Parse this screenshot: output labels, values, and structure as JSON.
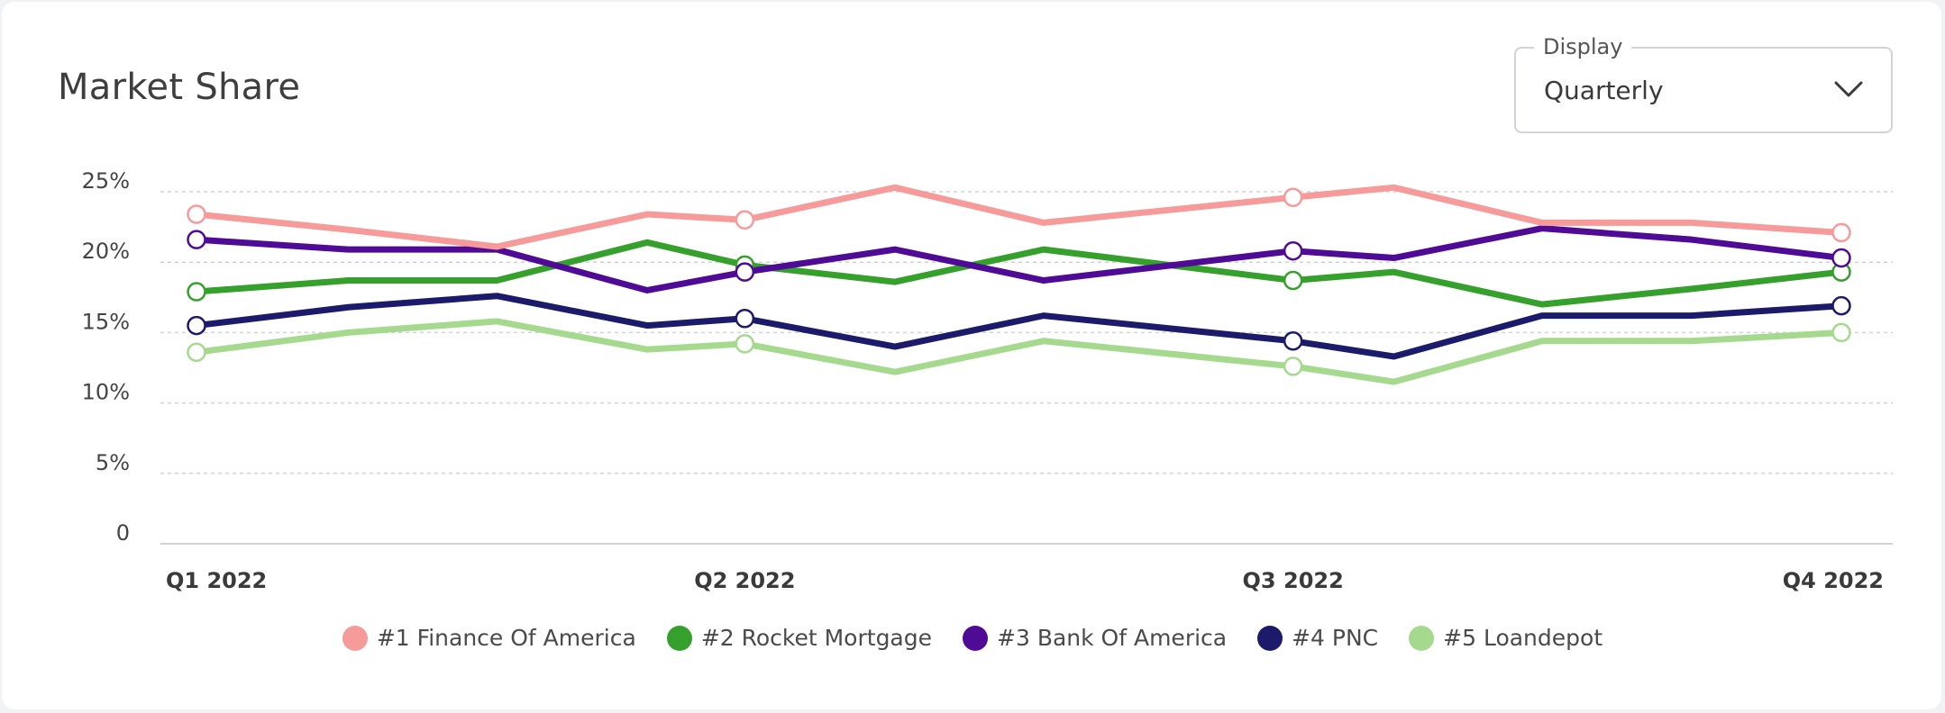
{
  "title": "Market Share",
  "display": {
    "label": "Display",
    "value": "Quarterly",
    "icon": "chevron-down-icon"
  },
  "chart_data": {
    "type": "line",
    "title": "Market Share",
    "xlabel": "",
    "ylabel": "",
    "y_ticks": [
      "0",
      "5%",
      "10%",
      "15%",
      "20%",
      "25%"
    ],
    "ylim": [
      0,
      25
    ],
    "x_ticks": [
      "Q1 2022",
      "Q2 2022",
      "Q3 2022",
      "Q4 2022"
    ],
    "grid": true,
    "legend_position": "bottom",
    "x": [
      0,
      0.277,
      0.548,
      0.822,
      1,
      1.274,
      1.545,
      2,
      2.184,
      2.454,
      2.727,
      3
    ],
    "marker_indices": [
      0,
      4,
      7,
      11
    ],
    "series": [
      {
        "name": "#1 Finance Of America",
        "color": "#f79a9a",
        "values": [
          23.4,
          22.3,
          21.1,
          23.4,
          23.0,
          25.3,
          22.8,
          24.6,
          25.3,
          22.8,
          22.8,
          22.1
        ]
      },
      {
        "name": "#2 Rocket Mortgage",
        "color": "#35a02c",
        "values": [
          17.9,
          18.7,
          18.7,
          21.4,
          19.8,
          18.6,
          20.9,
          18.7,
          19.3,
          17.0,
          18.1,
          19.3
        ]
      },
      {
        "name": "#3 Bank Of America",
        "color": "#4f0a96",
        "values": [
          21.6,
          20.9,
          20.9,
          18.0,
          19.3,
          20.9,
          18.7,
          20.8,
          20.3,
          22.4,
          21.6,
          20.3
        ]
      },
      {
        "name": "#4 PNC",
        "color": "#1c1a6b",
        "values": [
          15.5,
          16.8,
          17.6,
          15.5,
          16.0,
          14.0,
          16.2,
          14.4,
          13.3,
          16.2,
          16.2,
          16.9
        ]
      },
      {
        "name": "#5 Loandepot",
        "color": "#a5d98e",
        "values": [
          13.6,
          15.0,
          15.8,
          13.8,
          14.2,
          12.2,
          14.4,
          12.6,
          11.5,
          14.4,
          14.4,
          15.0
        ]
      }
    ]
  }
}
